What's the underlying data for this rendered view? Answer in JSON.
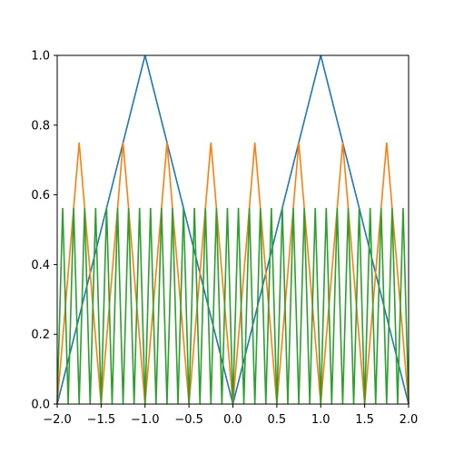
{
  "chart_data": {
    "type": "line",
    "title": "",
    "xlabel": "",
    "ylabel": "",
    "xlim": [
      -2.0,
      2.0
    ],
    "ylim": [
      0.0,
      1.0
    ],
    "grid": false,
    "legend": "none",
    "x_ticks": [
      -2.0,
      -1.5,
      -1.0,
      -0.5,
      0.0,
      0.5,
      1.0,
      1.5,
      2.0
    ],
    "x_tick_labels": [
      "−2.0",
      "−1.5",
      "−1.0",
      "−0.5",
      "0.0",
      "0.5",
      "1.0",
      "1.5",
      "2.0"
    ],
    "y_ticks": [
      0.0,
      0.2,
      0.4,
      0.6,
      0.8,
      1.0
    ],
    "y_tick_labels": [
      "0.0",
      "0.2",
      "0.4",
      "0.6",
      "0.8",
      "1.0"
    ],
    "series": [
      {
        "color": "#1f77b4",
        "x": [
          -2.0,
          -1.0,
          0.0,
          1.0,
          2.0
        ],
        "y": [
          0.0,
          1.0,
          0.0,
          1.0,
          0.0
        ]
      },
      {
        "color": "#ff7f0e",
        "x": [
          -2.0,
          -1.75,
          -1.5,
          -1.25,
          -1.0,
          -0.75,
          -0.5,
          -0.25,
          0.0,
          0.25,
          0.5,
          0.75,
          1.0,
          1.25,
          1.5,
          1.75,
          2.0
        ],
        "y": [
          0.0,
          0.75,
          0.0,
          0.75,
          0.0,
          0.75,
          0.0,
          0.75,
          0.0,
          0.75,
          0.0,
          0.75,
          0.0,
          0.75,
          0.0,
          0.75,
          0.0
        ]
      },
      {
        "color": "#2ca02c",
        "x": [
          -2.0,
          -1.9375,
          -1.875,
          -1.8125,
          -1.75,
          -1.6875,
          -1.625,
          -1.5625,
          -1.5,
          -1.4375,
          -1.375,
          -1.3125,
          -1.25,
          -1.1875,
          -1.125,
          -1.0625,
          -1.0,
          -0.9375,
          -0.875,
          -0.8125,
          -0.75,
          -0.6875,
          -0.625,
          -0.5625,
          -0.5,
          -0.4375,
          -0.375,
          -0.3125,
          -0.25,
          -0.1875,
          -0.125,
          -0.0625,
          0.0,
          0.0625,
          0.125,
          0.1875,
          0.25,
          0.3125,
          0.375,
          0.4375,
          0.5,
          0.5625,
          0.625,
          0.6875,
          0.75,
          0.8125,
          0.875,
          0.9375,
          1.0,
          1.0625,
          1.125,
          1.1875,
          1.25,
          1.3125,
          1.375,
          1.4375,
          1.5,
          1.5625,
          1.625,
          1.6875,
          1.75,
          1.8125,
          1.875,
          1.9375,
          2.0
        ],
        "y": [
          0.0,
          0.5625,
          0.0,
          0.5625,
          0.0,
          0.5625,
          0.0,
          0.5625,
          0.0,
          0.5625,
          0.0,
          0.5625,
          0.0,
          0.5625,
          0.0,
          0.5625,
          0.0,
          0.5625,
          0.0,
          0.5625,
          0.0,
          0.5625,
          0.0,
          0.5625,
          0.0,
          0.5625,
          0.0,
          0.5625,
          0.0,
          0.5625,
          0.0,
          0.5625,
          0.0,
          0.5625,
          0.0,
          0.5625,
          0.0,
          0.5625,
          0.0,
          0.5625,
          0.0,
          0.5625,
          0.0,
          0.5625,
          0.0,
          0.5625,
          0.0,
          0.5625,
          0.0,
          0.5625,
          0.0,
          0.5625,
          0.0,
          0.5625,
          0.0,
          0.5625,
          0.0,
          0.5625,
          0.0,
          0.5625,
          0.0,
          0.5625,
          0.0,
          0.5625,
          0.0
        ]
      }
    ]
  }
}
